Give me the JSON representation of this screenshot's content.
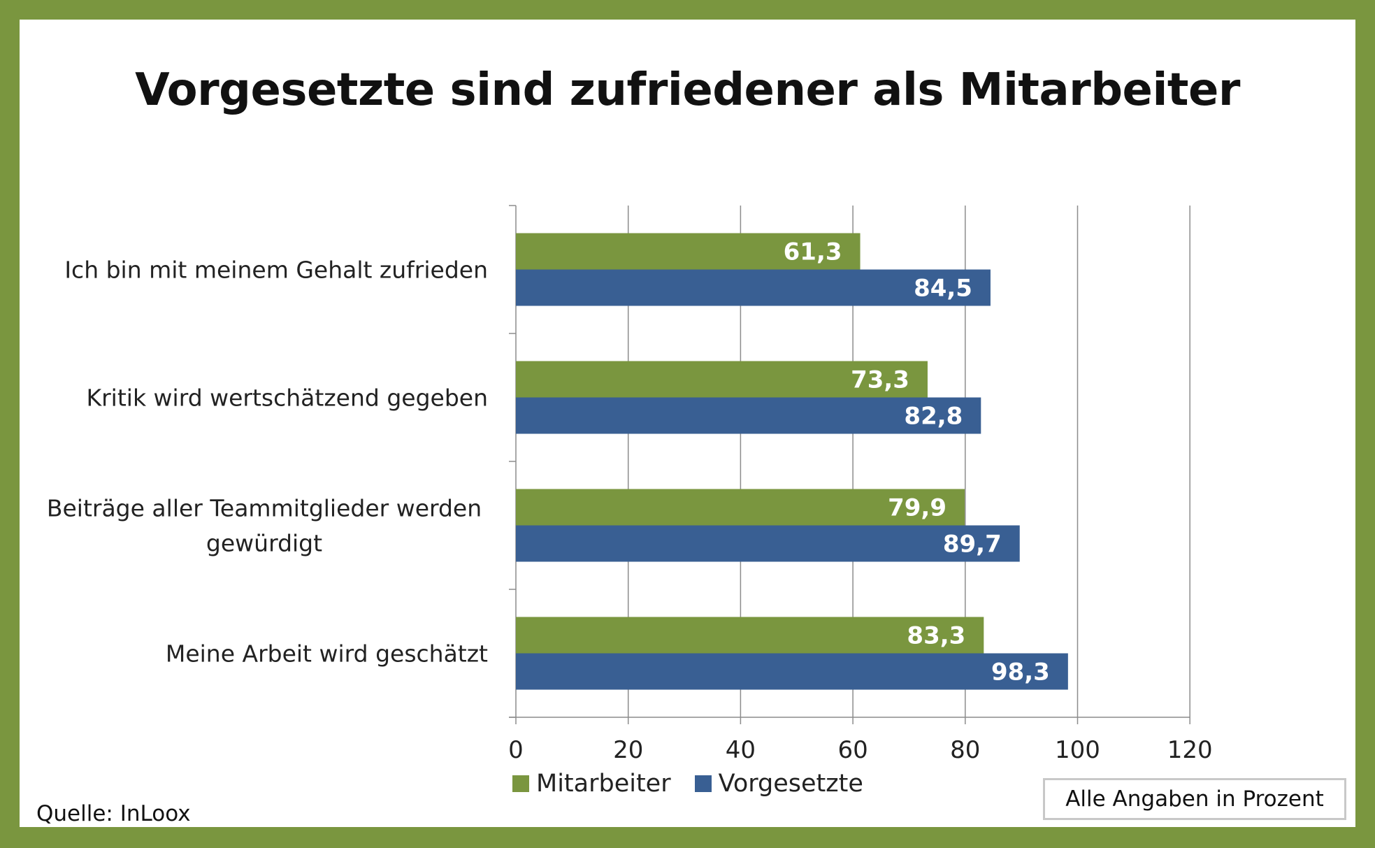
{
  "chart_data": {
    "type": "bar",
    "orientation": "horizontal",
    "title": "Vorgesetzte sind zufriedener als Mitarbeiter",
    "categories": [
      [
        "Ich bin mit meinem Gehalt zufrieden"
      ],
      [
        "Kritik wird wertschätzend gegeben"
      ],
      [
        "Beiträge aller Teammitglieder werden",
        "gewürdigt"
      ],
      [
        "Meine Arbeit wird geschätzt"
      ]
    ],
    "series": [
      {
        "name": "Mitarbeiter",
        "color": "#7a963f",
        "values": [
          61.3,
          73.3,
          79.9,
          83.3
        ],
        "labels": [
          "61,3",
          "73,3",
          "79,9",
          "83,3"
        ]
      },
      {
        "name": "Vorgesetzte",
        "color": "#395f93",
        "values": [
          84.5,
          82.8,
          89.7,
          98.3
        ],
        "labels": [
          "84,5",
          "82,8",
          "89,7",
          "98,3"
        ]
      }
    ],
    "xlim": [
      0,
      120
    ],
    "xticks": [
      "0",
      "20",
      "40",
      "60",
      "80",
      "100",
      "120"
    ],
    "grid": true,
    "legend": "bottom"
  },
  "footer": {
    "source": "Quelle: InLoox",
    "note": "Alle Angaben in Prozent"
  },
  "colors": {
    "frame": "#7a963f",
    "grid": "#8c8c8c"
  }
}
